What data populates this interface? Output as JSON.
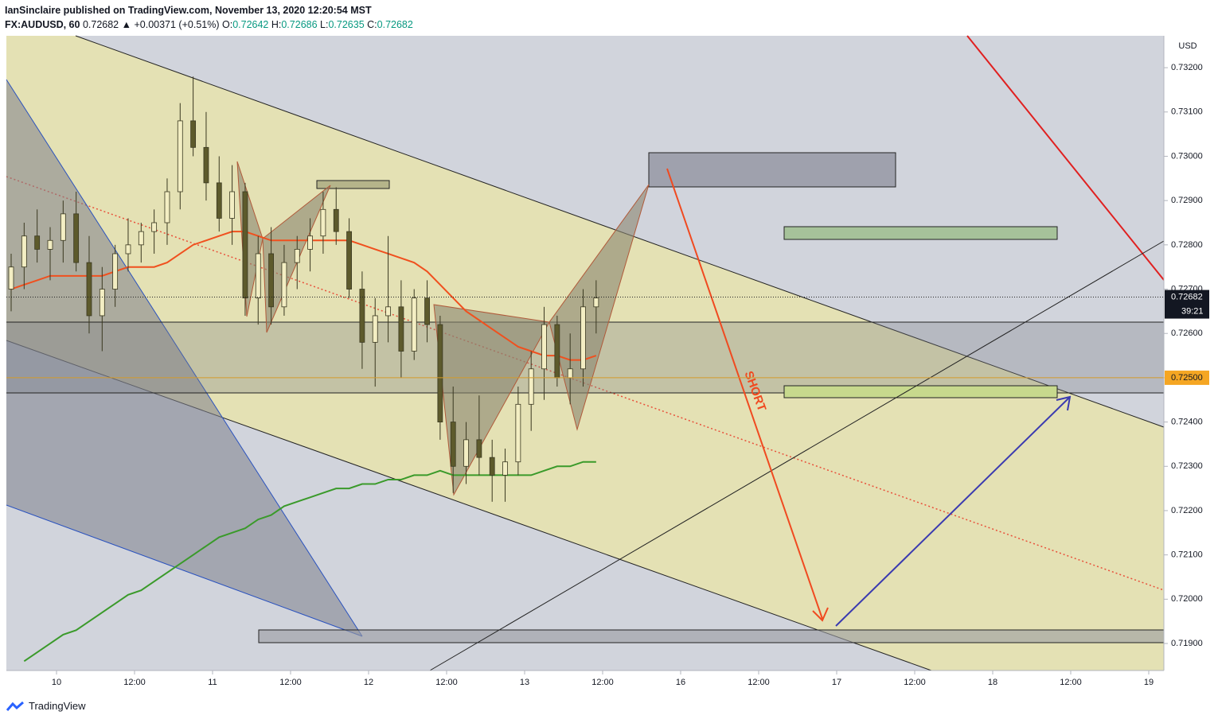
{
  "header": {
    "publisher": "IanSinclaire published on TradingView.com, November 13, 2020 12:20:54 MST",
    "symbol": "FX:AUDUSD, 60",
    "price": "0.72682",
    "change": "▲ +0.00371 (+0.51%)",
    "o_label": "O:",
    "o": "0.72642",
    "h_label": "H:",
    "h": "0.72686",
    "l_label": "L:",
    "l": "0.72635",
    "c_label": "C:",
    "c": "0.72682"
  },
  "footer": "TradingView",
  "chart_data": {
    "type": "candlestick",
    "currency": "USD",
    "annotation": "SHORT",
    "up_color": "#f3eec3",
    "down_color": "#5d5a2c",
    "ylim": [
      0.71839,
      0.73272
    ],
    "yticks": [
      {
        "value": 0.732,
        "label": "0.73200"
      },
      {
        "value": 0.731,
        "label": "0.73100"
      },
      {
        "value": 0.73,
        "label": "0.73000"
      },
      {
        "value": 0.729,
        "label": "0.72900"
      },
      {
        "value": 0.728,
        "label": "0.72800"
      },
      {
        "value": 0.727,
        "label": "0.72700"
      },
      {
        "value": 0.726,
        "label": "0.72600"
      },
      {
        "value": 0.725,
        "label": "0.72500"
      },
      {
        "value": 0.724,
        "label": "0.72400"
      },
      {
        "value": 0.723,
        "label": "0.72300"
      },
      {
        "value": 0.722,
        "label": "0.72200"
      },
      {
        "value": 0.721,
        "label": "0.72100"
      },
      {
        "value": 0.72,
        "label": "0.72000"
      },
      {
        "value": 0.719,
        "label": "0.71900"
      }
    ],
    "x_labels": [
      "10",
      "12:00",
      "11",
      "12:00",
      "12",
      "12:00",
      "13",
      "12:00",
      "16",
      "12:00",
      "17",
      "12:00",
      "18",
      "12:00",
      "19"
    ],
    "last_price": {
      "value": 0.72682,
      "label": "0.72682"
    },
    "countdown": "39:21",
    "level": {
      "value": 0.725,
      "label": "0.72500"
    },
    "candles": [
      {
        "o": 0.727,
        "h": 0.7278,
        "l": 0.7265,
        "c": 0.7275
      },
      {
        "o": 0.7275,
        "h": 0.7285,
        "l": 0.727,
        "c": 0.7282
      },
      {
        "o": 0.7282,
        "h": 0.7288,
        "l": 0.7276,
        "c": 0.7279
      },
      {
        "o": 0.7279,
        "h": 0.7284,
        "l": 0.7272,
        "c": 0.7281
      },
      {
        "o": 0.7281,
        "h": 0.729,
        "l": 0.7276,
        "c": 0.7287
      },
      {
        "o": 0.7287,
        "h": 0.7292,
        "l": 0.7274,
        "c": 0.7276
      },
      {
        "o": 0.7276,
        "h": 0.7282,
        "l": 0.726,
        "c": 0.7264
      },
      {
        "o": 0.7264,
        "h": 0.7275,
        "l": 0.7256,
        "c": 0.727
      },
      {
        "o": 0.727,
        "h": 0.728,
        "l": 0.7266,
        "c": 0.7278
      },
      {
        "o": 0.7278,
        "h": 0.7286,
        "l": 0.7274,
        "c": 0.728
      },
      {
        "o": 0.728,
        "h": 0.7285,
        "l": 0.7276,
        "c": 0.7283
      },
      {
        "o": 0.7283,
        "h": 0.7288,
        "l": 0.7278,
        "c": 0.7285
      },
      {
        "o": 0.7285,
        "h": 0.7295,
        "l": 0.728,
        "c": 0.7292
      },
      {
        "o": 0.7292,
        "h": 0.7312,
        "l": 0.7288,
        "c": 0.7308
      },
      {
        "o": 0.7308,
        "h": 0.7318,
        "l": 0.73,
        "c": 0.7302
      },
      {
        "o": 0.7302,
        "h": 0.731,
        "l": 0.729,
        "c": 0.7294
      },
      {
        "o": 0.7294,
        "h": 0.73,
        "l": 0.7283,
        "c": 0.7286
      },
      {
        "o": 0.7286,
        "h": 0.7298,
        "l": 0.728,
        "c": 0.7292
      },
      {
        "o": 0.7292,
        "h": 0.7294,
        "l": 0.7264,
        "c": 0.7268
      },
      {
        "o": 0.7268,
        "h": 0.7282,
        "l": 0.7262,
        "c": 0.7278
      },
      {
        "o": 0.7278,
        "h": 0.7284,
        "l": 0.7262,
        "c": 0.7266
      },
      {
        "o": 0.7266,
        "h": 0.728,
        "l": 0.7264,
        "c": 0.7276
      },
      {
        "o": 0.7276,
        "h": 0.7282,
        "l": 0.727,
        "c": 0.7279
      },
      {
        "o": 0.7279,
        "h": 0.7286,
        "l": 0.7274,
        "c": 0.7282
      },
      {
        "o": 0.7282,
        "h": 0.7292,
        "l": 0.7278,
        "c": 0.7288
      },
      {
        "o": 0.7288,
        "h": 0.7293,
        "l": 0.728,
        "c": 0.7283
      },
      {
        "o": 0.7283,
        "h": 0.7286,
        "l": 0.7268,
        "c": 0.727
      },
      {
        "o": 0.727,
        "h": 0.7274,
        "l": 0.7252,
        "c": 0.7258
      },
      {
        "o": 0.7258,
        "h": 0.7268,
        "l": 0.7248,
        "c": 0.7264
      },
      {
        "o": 0.7264,
        "h": 0.7282,
        "l": 0.7258,
        "c": 0.7266
      },
      {
        "o": 0.7266,
        "h": 0.7272,
        "l": 0.725,
        "c": 0.7256
      },
      {
        "o": 0.7256,
        "h": 0.727,
        "l": 0.7254,
        "c": 0.7268
      },
      {
        "o": 0.7268,
        "h": 0.7272,
        "l": 0.7258,
        "c": 0.7262
      },
      {
        "o": 0.7262,
        "h": 0.7264,
        "l": 0.7236,
        "c": 0.724
      },
      {
        "o": 0.724,
        "h": 0.7248,
        "l": 0.7224,
        "c": 0.723
      },
      {
        "o": 0.723,
        "h": 0.724,
        "l": 0.7226,
        "c": 0.7236
      },
      {
        "o": 0.7236,
        "h": 0.7246,
        "l": 0.7228,
        "c": 0.7232
      },
      {
        "o": 0.7232,
        "h": 0.7236,
        "l": 0.7222,
        "c": 0.7228
      },
      {
        "o": 0.7228,
        "h": 0.7234,
        "l": 0.7222,
        "c": 0.7231
      },
      {
        "o": 0.7231,
        "h": 0.7248,
        "l": 0.7228,
        "c": 0.7244
      },
      {
        "o": 0.7244,
        "h": 0.7256,
        "l": 0.7238,
        "c": 0.7252
      },
      {
        "o": 0.7252,
        "h": 0.7266,
        "l": 0.7245,
        "c": 0.7262
      },
      {
        "o": 0.7262,
        "h": 0.7264,
        "l": 0.7248,
        "c": 0.725
      },
      {
        "o": 0.725,
        "h": 0.726,
        "l": 0.7244,
        "c": 0.7252
      },
      {
        "o": 0.7252,
        "h": 0.727,
        "l": 0.7248,
        "c": 0.7266
      },
      {
        "o": 0.7266,
        "h": 0.7272,
        "l": 0.726,
        "c": 0.7268
      }
    ],
    "series": [
      {
        "color": "#f0501e",
        "values": [
          0.727,
          0.7271,
          0.7272,
          0.7273,
          0.7273,
          0.7273,
          0.7273,
          0.7273,
          0.7274,
          0.7275,
          0.7275,
          0.7275,
          0.7276,
          0.7278,
          0.728,
          0.7281,
          0.7282,
          0.7283,
          0.7283,
          0.7282,
          0.7281,
          0.7281,
          0.7281,
          0.7281,
          0.7281,
          0.7281,
          0.7281,
          0.728,
          0.7279,
          0.7278,
          0.7277,
          0.7276,
          0.7274,
          0.7271,
          0.7268,
          0.7265,
          0.7263,
          0.7261,
          0.7259,
          0.7257,
          0.7256,
          0.7255,
          0.7255,
          0.7254,
          0.7254,
          0.7255
        ]
      },
      {
        "color": "#3a9a2a",
        "values": [
          null,
          0.7186,
          0.7188,
          0.719,
          0.7192,
          0.7193,
          0.7195,
          0.7197,
          0.7199,
          0.7201,
          0.7202,
          0.7204,
          0.7206,
          0.7208,
          0.721,
          0.7212,
          0.7214,
          0.7215,
          0.7216,
          0.7218,
          0.7219,
          0.7221,
          0.7222,
          0.7223,
          0.7224,
          0.7225,
          0.7225,
          0.7226,
          0.7226,
          0.7227,
          0.7227,
          0.7228,
          0.7228,
          0.7229,
          0.7228,
          0.7228,
          0.7228,
          0.7228,
          0.7228,
          0.7228,
          0.7228,
          0.7229,
          0.723,
          0.723,
          0.7231,
          0.7231
        ]
      }
    ]
  }
}
